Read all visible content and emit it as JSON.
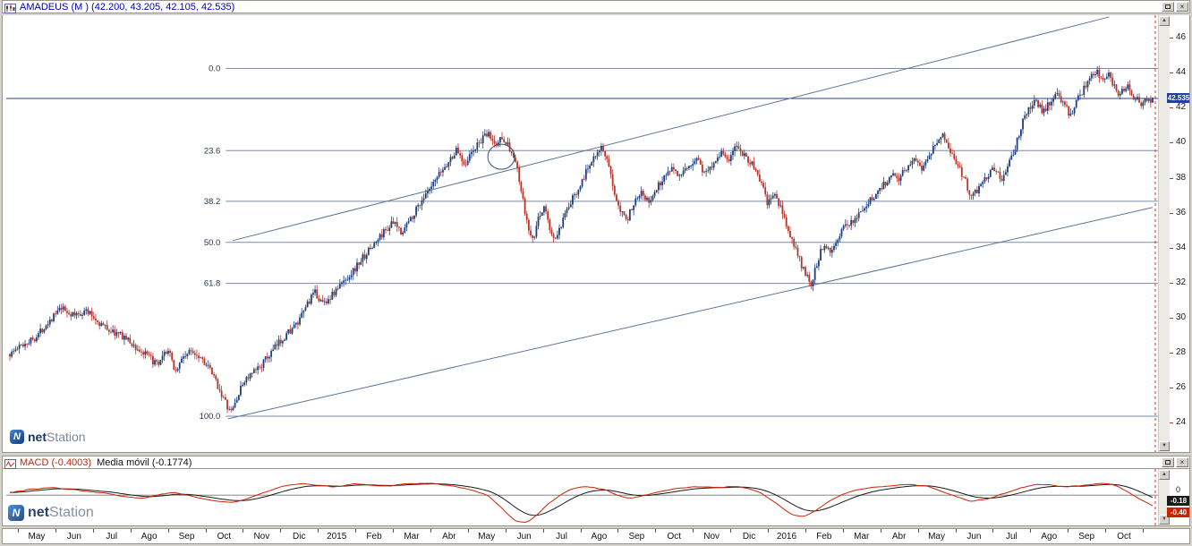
{
  "colors": {
    "main_title": "#0000b4",
    "macd_title": "#cc2200",
    "signal_title": "#111111",
    "candle_up": "#1c3e7e",
    "candle_down": "#b43428",
    "fib_line": "#7e8aa6",
    "fib_text": "#27364f",
    "trend_line": "#5f7396",
    "price_line": "#2a3f87",
    "cursor": "#dd2a2a",
    "zero_line": "#777777",
    "price_badge_bg": "#24409a",
    "macd_badge_bg": "#cc2200",
    "signal_badge_bg": "#1a1a1a"
  },
  "window_controls": {
    "close_glyph": "×"
  },
  "icons": {
    "arrow_up": "▲",
    "arrow_down": "▼"
  },
  "branding": {
    "icon_letter": "N",
    "net": "net",
    "station": "Station"
  },
  "main_panel": {
    "title": "AMADEUS (M ) (42.200, 43.205, 42.105, 42.535)"
  },
  "macd_panel": {
    "title_macd": "MACD (-0.4003)",
    "title_signal": "Media móvil (-0.1774)"
  },
  "chart_data": [
    {
      "type": "candlestick",
      "symbol": "AMADEUS",
      "timeframe_label": "M",
      "ohlc_current": {
        "open": 42.2,
        "high": 43.205,
        "low": 42.105,
        "close": 42.535
      },
      "last_price": 42.535,
      "last_price_label": "42.535",
      "y_axis": {
        "ticks": [
          46,
          44,
          42,
          40,
          38,
          36,
          34,
          32,
          30,
          28,
          26,
          24
        ],
        "render_min": 22.3,
        "render_max": 47.3
      },
      "x_axis": {
        "labels": [
          "May",
          "Jun",
          "Jul",
          "Ago",
          "Sep",
          "Oct",
          "Nov",
          "Dic",
          "2015",
          "Feb",
          "Mar",
          "Abr",
          "May",
          "Jun",
          "Jul",
          "Ago",
          "Sep",
          "Oct",
          "Nov",
          "Dic",
          "2016",
          "Feb",
          "Mar",
          "Abr",
          "May",
          "Jun",
          "Jul",
          "Ago",
          "Sep",
          "Oct"
        ],
        "x0": 17,
        "seg_w": 41.9
      },
      "fib_levels": [
        {
          "label": "0.0",
          "price": 44.25
        },
        {
          "label": "23.6",
          "price": 39.55
        },
        {
          "label": "38.2",
          "price": 36.65
        },
        {
          "label": "50.0",
          "price": 34.3
        },
        {
          "label": "61.8",
          "price": 31.95
        },
        {
          "label": "100.0",
          "price": 24.35
        }
      ],
      "fib_start": 0.189,
      "trend_lines": [
        {
          "x1": 0.195,
          "p1": 34.4,
          "x2": 0.962,
          "p2": 47.2
        },
        {
          "x1": 0.191,
          "p1": 24.2,
          "x2": 1.0,
          "p2": 36.3
        }
      ],
      "circle_annotation": {
        "x": 0.43,
        "price": 39.2,
        "r": 15
      },
      "candle_count": 600,
      "seed": 1337,
      "price_path": [
        [
          0.0,
          27.9
        ],
        [
          0.01,
          28.4
        ],
        [
          0.023,
          28.9
        ],
        [
          0.034,
          29.8
        ],
        [
          0.045,
          30.5
        ],
        [
          0.056,
          30.1
        ],
        [
          0.067,
          30.4
        ],
        [
          0.078,
          29.7
        ],
        [
          0.089,
          29.2
        ],
        [
          0.1,
          28.9
        ],
        [
          0.111,
          28.2
        ],
        [
          0.122,
          27.7
        ],
        [
          0.13,
          27.2
        ],
        [
          0.138,
          28.2
        ],
        [
          0.145,
          26.9
        ],
        [
          0.152,
          27.8
        ],
        [
          0.16,
          28.1
        ],
        [
          0.168,
          27.7
        ],
        [
          0.175,
          27.0
        ],
        [
          0.182,
          26.1
        ],
        [
          0.188,
          25.2
        ],
        [
          0.193,
          24.5
        ],
        [
          0.199,
          25.4
        ],
        [
          0.205,
          26.4
        ],
        [
          0.213,
          26.8
        ],
        [
          0.22,
          27.3
        ],
        [
          0.228,
          27.9
        ],
        [
          0.236,
          28.6
        ],
        [
          0.244,
          29.2
        ],
        [
          0.253,
          29.7
        ],
        [
          0.26,
          30.8
        ],
        [
          0.267,
          31.4
        ],
        [
          0.274,
          30.8
        ],
        [
          0.281,
          31.2
        ],
        [
          0.286,
          31.6
        ],
        [
          0.294,
          32.2
        ],
        [
          0.302,
          32.8
        ],
        [
          0.311,
          33.6
        ],
        [
          0.319,
          34.2
        ],
        [
          0.327,
          34.9
        ],
        [
          0.335,
          35.4
        ],
        [
          0.343,
          34.9
        ],
        [
          0.352,
          35.8
        ],
        [
          0.36,
          36.7
        ],
        [
          0.368,
          37.3
        ],
        [
          0.376,
          38.2
        ],
        [
          0.384,
          38.9
        ],
        [
          0.391,
          39.6
        ],
        [
          0.398,
          38.8
        ],
        [
          0.405,
          39.5
        ],
        [
          0.412,
          40.1
        ],
        [
          0.419,
          40.5
        ],
        [
          0.425,
          39.8
        ],
        [
          0.431,
          40.4
        ],
        [
          0.437,
          39.7
        ],
        [
          0.443,
          38.8
        ],
        [
          0.448,
          37.0
        ],
        [
          0.453,
          35.2
        ],
        [
          0.458,
          34.3
        ],
        [
          0.463,
          35.8
        ],
        [
          0.468,
          36.4
        ],
        [
          0.473,
          34.8
        ],
        [
          0.478,
          34.5
        ],
        [
          0.484,
          35.5
        ],
        [
          0.491,
          36.6
        ],
        [
          0.498,
          37.5
        ],
        [
          0.505,
          38.4
        ],
        [
          0.511,
          39.3
        ],
        [
          0.517,
          39.8
        ],
        [
          0.523,
          38.8
        ],
        [
          0.529,
          37.2
        ],
        [
          0.535,
          36.1
        ],
        [
          0.541,
          35.7
        ],
        [
          0.547,
          36.8
        ],
        [
          0.553,
          37.3
        ],
        [
          0.559,
          36.5
        ],
        [
          0.566,
          37.4
        ],
        [
          0.573,
          38.1
        ],
        [
          0.58,
          38.7
        ],
        [
          0.587,
          38.0
        ],
        [
          0.594,
          38.6
        ],
        [
          0.601,
          39.2
        ],
        [
          0.608,
          38.2
        ],
        [
          0.615,
          38.8
        ],
        [
          0.622,
          39.5
        ],
        [
          0.629,
          39.0
        ],
        [
          0.636,
          39.8
        ],
        [
          0.643,
          39.3
        ],
        [
          0.65,
          38.7
        ],
        [
          0.657,
          37.8
        ],
        [
          0.663,
          36.5
        ],
        [
          0.669,
          37.0
        ],
        [
          0.675,
          36.2
        ],
        [
          0.681,
          35.0
        ],
        [
          0.688,
          33.8
        ],
        [
          0.695,
          32.6
        ],
        [
          0.701,
          31.9
        ],
        [
          0.707,
          33.3
        ],
        [
          0.713,
          34.3
        ],
        [
          0.719,
          33.8
        ],
        [
          0.725,
          34.6
        ],
        [
          0.731,
          35.2
        ],
        [
          0.738,
          35.6
        ],
        [
          0.745,
          36.1
        ],
        [
          0.752,
          36.6
        ],
        [
          0.759,
          37.2
        ],
        [
          0.766,
          37.7
        ],
        [
          0.772,
          38.3
        ],
        [
          0.778,
          38.0
        ],
        [
          0.785,
          38.6
        ],
        [
          0.791,
          39.2
        ],
        [
          0.798,
          38.6
        ],
        [
          0.804,
          39.3
        ],
        [
          0.81,
          40.0
        ],
        [
          0.816,
          40.4
        ],
        [
          0.822,
          39.7
        ],
        [
          0.828,
          38.9
        ],
        [
          0.835,
          38.0
        ],
        [
          0.842,
          36.8
        ],
        [
          0.848,
          37.5
        ],
        [
          0.855,
          38.1
        ],
        [
          0.861,
          38.6
        ],
        [
          0.868,
          37.9
        ],
        [
          0.874,
          38.7
        ],
        [
          0.88,
          39.8
        ],
        [
          0.886,
          41.2
        ],
        [
          0.892,
          42.0
        ],
        [
          0.898,
          42.4
        ],
        [
          0.904,
          41.8
        ],
        [
          0.91,
          42.3
        ],
        [
          0.916,
          42.8
        ],
        [
          0.922,
          42.2
        ],
        [
          0.928,
          41.6
        ],
        [
          0.934,
          42.4
        ],
        [
          0.94,
          43.1
        ],
        [
          0.946,
          43.7
        ],
        [
          0.951,
          44.1
        ],
        [
          0.956,
          43.6
        ],
        [
          0.961,
          43.9
        ],
        [
          0.966,
          43.3
        ],
        [
          0.971,
          42.8
        ],
        [
          0.977,
          43.3
        ],
        [
          0.983,
          42.7
        ],
        [
          0.99,
          42.3
        ],
        [
          1.0,
          42.5
        ]
      ]
    },
    {
      "type": "line",
      "indicator": "MACD",
      "series": [
        {
          "name": "MACD",
          "color": "#cc2200",
          "current": -0.4003
        },
        {
          "name": "Media móvil",
          "color": "#1a1a1a",
          "current": -0.1774
        }
      ],
      "y_axis": {
        "zero_label": "0",
        "render_min": -1.1,
        "render_max": 0.95
      },
      "badges": {
        "macd": "-0.40",
        "signal": "-0.18"
      },
      "seed": 77,
      "macd_path": [
        [
          0.0,
          0.1
        ],
        [
          0.02,
          0.22
        ],
        [
          0.04,
          0.28
        ],
        [
          0.06,
          0.18
        ],
        [
          0.08,
          0.1
        ],
        [
          0.1,
          -0.05
        ],
        [
          0.115,
          -0.12
        ],
        [
          0.13,
          0.02
        ],
        [
          0.145,
          0.1
        ],
        [
          0.16,
          -0.05
        ],
        [
          0.175,
          -0.18
        ],
        [
          0.195,
          -0.28
        ],
        [
          0.21,
          -0.1
        ],
        [
          0.225,
          0.15
        ],
        [
          0.24,
          0.35
        ],
        [
          0.255,
          0.42
        ],
        [
          0.27,
          0.35
        ],
        [
          0.285,
          0.3
        ],
        [
          0.3,
          0.42
        ],
        [
          0.315,
          0.38
        ],
        [
          0.33,
          0.32
        ],
        [
          0.345,
          0.4
        ],
        [
          0.36,
          0.45
        ],
        [
          0.375,
          0.4
        ],
        [
          0.39,
          0.32
        ],
        [
          0.405,
          0.18
        ],
        [
          0.42,
          -0.05
        ],
        [
          0.432,
          -0.55
        ],
        [
          0.443,
          -0.95
        ],
        [
          0.452,
          -1.02
        ],
        [
          0.462,
          -0.7
        ],
        [
          0.472,
          -0.3
        ],
        [
          0.482,
          0.02
        ],
        [
          0.492,
          0.22
        ],
        [
          0.502,
          0.32
        ],
        [
          0.512,
          0.28
        ],
        [
          0.522,
          0.18
        ],
        [
          0.532,
          -0.02
        ],
        [
          0.542,
          -0.12
        ],
        [
          0.552,
          -0.05
        ],
        [
          0.562,
          0.08
        ],
        [
          0.575,
          0.18
        ],
        [
          0.59,
          0.28
        ],
        [
          0.605,
          0.32
        ],
        [
          0.62,
          0.28
        ],
        [
          0.635,
          0.32
        ],
        [
          0.648,
          0.22
        ],
        [
          0.66,
          0.02
        ],
        [
          0.672,
          -0.35
        ],
        [
          0.684,
          -0.72
        ],
        [
          0.694,
          -0.8
        ],
        [
          0.705,
          -0.55
        ],
        [
          0.716,
          -0.25
        ],
        [
          0.728,
          0.02
        ],
        [
          0.74,
          0.18
        ],
        [
          0.752,
          0.28
        ],
        [
          0.765,
          0.32
        ],
        [
          0.778,
          0.36
        ],
        [
          0.79,
          0.38
        ],
        [
          0.802,
          0.32
        ],
        [
          0.815,
          0.15
        ],
        [
          0.828,
          -0.05
        ],
        [
          0.84,
          -0.22
        ],
        [
          0.852,
          -0.18
        ],
        [
          0.864,
          -0.02
        ],
        [
          0.876,
          0.15
        ],
        [
          0.888,
          0.3
        ],
        [
          0.9,
          0.4
        ],
        [
          0.912,
          0.36
        ],
        [
          0.924,
          0.3
        ],
        [
          0.936,
          0.34
        ],
        [
          0.948,
          0.4
        ],
        [
          0.958,
          0.44
        ],
        [
          0.968,
          0.34
        ],
        [
          0.978,
          0.12
        ],
        [
          0.988,
          -0.15
        ],
        [
          1.0,
          -0.4
        ]
      ]
    }
  ]
}
